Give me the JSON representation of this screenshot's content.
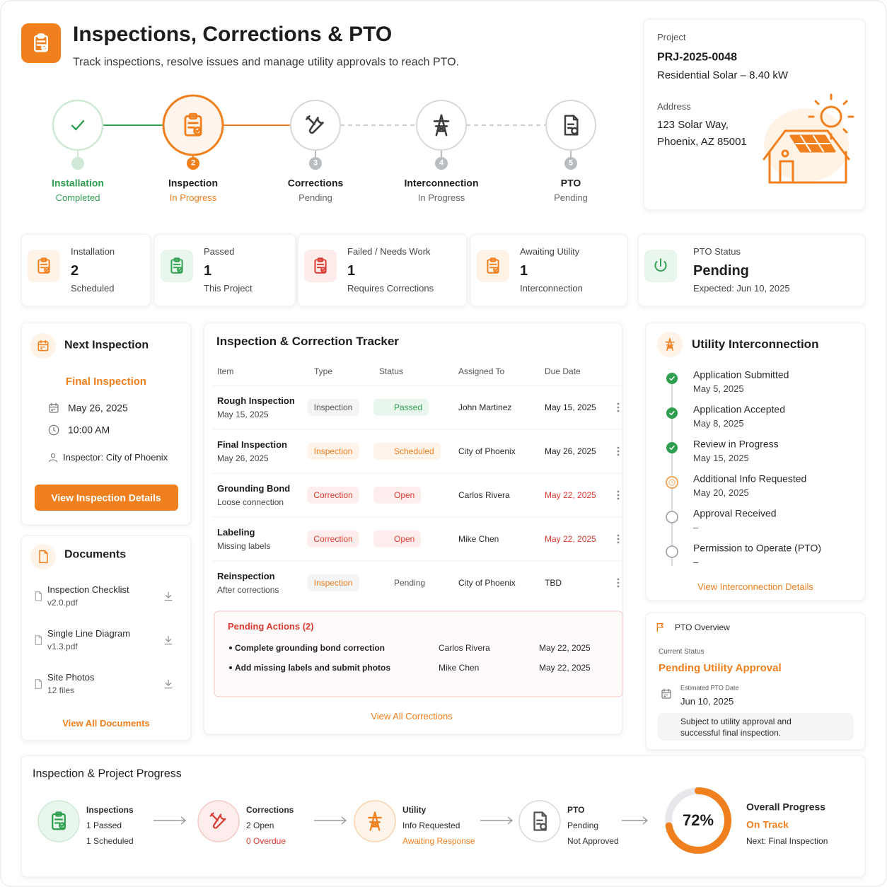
{
  "header": {
    "title": "Inspections, Corrections & PTO",
    "subtitle": "Track inspections, resolve issues and manage utility approvals to reach PTO."
  },
  "stepper": {
    "steps": [
      {
        "label": "Installation",
        "status": "Completed"
      },
      {
        "number": 2,
        "label": "Inspection",
        "status": "In Progress"
      },
      {
        "number": 3,
        "label": "Corrections",
        "status": "Pending"
      },
      {
        "number": 4,
        "label": "Interconnection",
        "status": "In Progress"
      },
      {
        "number": 5,
        "label": "PTO",
        "status": "Pending"
      }
    ]
  },
  "project": {
    "label": "Project",
    "id": "PRJ-2025-0048",
    "type": "Residential Solar – 8.40 kW",
    "address_label": "Address",
    "address_line1": "123 Solar Way,",
    "address_line2": "Phoenix, AZ 85001"
  },
  "stats": [
    {
      "label": "Installation",
      "value": 2,
      "note": "Scheduled"
    },
    {
      "label": "Passed",
      "value": 1,
      "note": "This Project"
    },
    {
      "label": "Failed / Needs Work",
      "value": 1,
      "note": "Requires Corrections"
    },
    {
      "label": "Awaiting Utility",
      "value": 1,
      "note": "Interconnection"
    },
    {
      "label": "PTO Status",
      "value": "Pending",
      "note": "Expected: Jun 10, 2025"
    }
  ],
  "next_inspection": {
    "title": "Next Inspection",
    "name": "Final Inspection",
    "date": "May 26, 2025",
    "time": "10:00 AM",
    "inspector": "Inspector: City of Phoenix",
    "button": "View Inspection Details"
  },
  "documents": {
    "title": "Documents",
    "items": [
      {
        "name": "Inspection Checklist",
        "meta": "v2.0.pdf"
      },
      {
        "name": "Single Line Diagram",
        "meta": "v1.3.pdf"
      },
      {
        "name": "Site Photos",
        "meta": "12 files"
      }
    ],
    "link": "View All Documents"
  },
  "tracker": {
    "title": "Inspection & Correction Tracker",
    "columns": [
      "Item",
      "Type",
      "Status",
      "Assigned To",
      "Due Date"
    ],
    "rows": [
      {
        "item": "Rough Inspection",
        "detail": "May 15, 2025",
        "type": "Inspection",
        "status": "Passed",
        "assigned": "John Martinez",
        "due": "May 15, 2025"
      },
      {
        "item": "Final Inspection",
        "detail": "May 26, 2025",
        "type": "Inspection",
        "status": "Scheduled",
        "assigned": "City of Phoenix",
        "due": "May 26, 2025"
      },
      {
        "item": "Grounding Bond",
        "detail": "Loose connection",
        "type": "Correction",
        "status": "Open",
        "assigned": "Carlos Rivera",
        "due": "May 22, 2025"
      },
      {
        "item": "Labeling",
        "detail": "Missing labels",
        "type": "Correction",
        "status": "Open",
        "assigned": "Mike Chen",
        "due": "May 22, 2025"
      },
      {
        "item": "Reinspection",
        "detail": "After corrections",
        "type": "Inspection",
        "status": "Pending",
        "assigned": "City of Phoenix",
        "due": "TBD"
      }
    ],
    "pending": {
      "title": "Pending Actions (2)",
      "items": [
        {
          "text": "Complete grounding bond correction",
          "assigned": "Carlos Rivera",
          "due": "May 22, 2025"
        },
        {
          "text": "Add missing labels and submit photos",
          "assigned": "Mike Chen",
          "due": "May 22, 2025"
        }
      ]
    },
    "link": "View All Corrections"
  },
  "utility": {
    "title": "Utility Interconnection",
    "steps": [
      {
        "label": "Application Submitted",
        "date": "May 5, 2025"
      },
      {
        "label": "Application Accepted",
        "date": "May 8, 2025"
      },
      {
        "label": "Review in Progress",
        "date": "May 15, 2025"
      },
      {
        "label": "Additional Info Requested",
        "date": "May 20, 2025"
      },
      {
        "label": "Approval Received",
        "date": "–"
      },
      {
        "label": "Permission to Operate (PTO)",
        "date": "–"
      }
    ],
    "link": "View Interconnection Details"
  },
  "pto": {
    "title": "PTO Overview",
    "status_label": "Current Status",
    "status": "Pending Utility Approval",
    "date_label": "Estimated PTO Date",
    "date": "Jun 10, 2025",
    "note": "Subject to utility approval and successful final inspection."
  },
  "progress": {
    "title": "Inspection & Project Progress",
    "items": [
      {
        "title": "Inspections",
        "line1": "1 Passed",
        "line2": "1 Scheduled"
      },
      {
        "title": "Corrections",
        "line1": "2 Open",
        "line2": "0 Overdue"
      },
      {
        "title": "Utility",
        "line1": "Info Requested",
        "line2": "Awaiting Response"
      },
      {
        "title": "PTO",
        "line1": "Pending",
        "line2": "Not Approved"
      }
    ],
    "overall": {
      "value": 72,
      "label": "72%",
      "title": "Overall Progress",
      "status": "On Track",
      "next": "Next: Final Inspection"
    }
  }
}
